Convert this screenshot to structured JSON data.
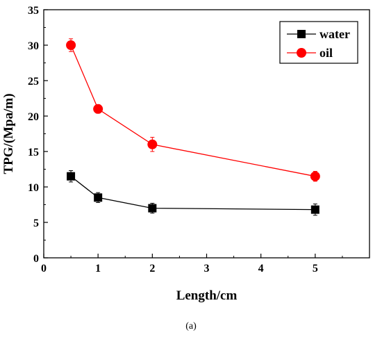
{
  "caption": "(a)",
  "chart_data": {
    "type": "line",
    "xlabel": "Length/cm",
    "ylabel": "TPG/(Mpa/m)",
    "xlim": [
      0,
      6
    ],
    "ylim": [
      0,
      35
    ],
    "xticks": [
      "0",
      "1",
      "2",
      "3",
      "4",
      "5"
    ],
    "yticks": [
      "0",
      "5",
      "10",
      "15",
      "20",
      "25",
      "30",
      "35"
    ],
    "legend_position": "top-right",
    "grid": false,
    "series": [
      {
        "name": "water",
        "color": "#000000",
        "marker": "square",
        "x": [
          0.5,
          1,
          2,
          5
        ],
        "y": [
          11.5,
          8.5,
          7.0,
          6.8
        ],
        "error": [
          0.8,
          0.7,
          0.7,
          0.8
        ]
      },
      {
        "name": "oil",
        "color": "#ff0000",
        "marker": "circle",
        "x": [
          0.5,
          1,
          2,
          5
        ],
        "y": [
          30.0,
          21.0,
          16.0,
          11.5
        ],
        "error": [
          0.9,
          0.6,
          1.0,
          0.7
        ]
      }
    ]
  }
}
